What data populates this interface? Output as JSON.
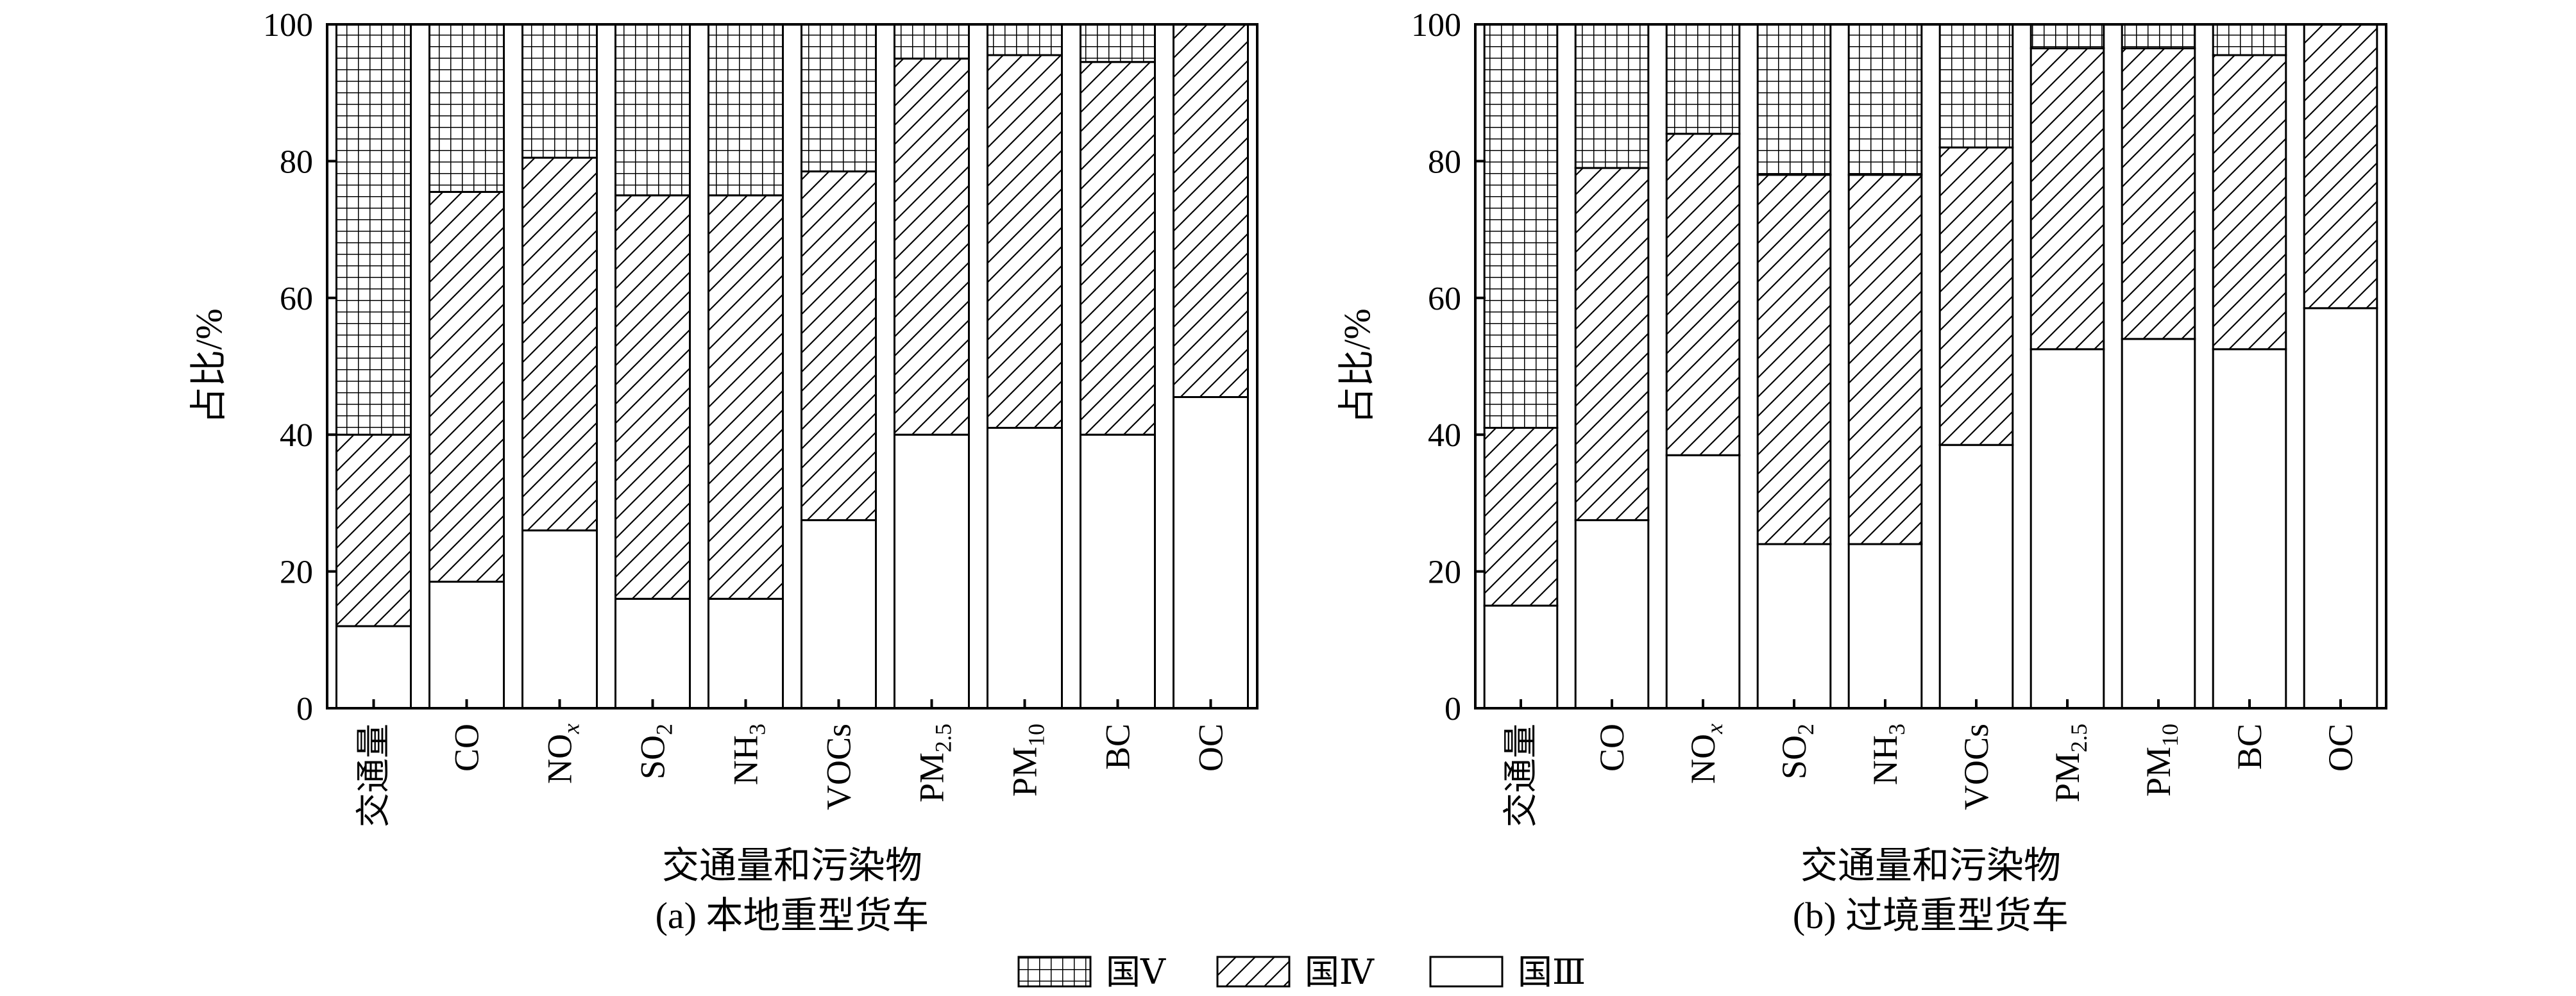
{
  "chart_data": [
    {
      "type": "bar",
      "stacked": true,
      "caption": "(a) 本地重型货车",
      "xlabel": "交通量和污染物",
      "ylabel": "占比/%",
      "ylim": [
        0,
        100
      ],
      "yticks": [
        "0",
        "20",
        "40",
        "60",
        "80",
        "100"
      ],
      "categories": [
        {
          "base": "交通量",
          "sub": "",
          "sub_type": ""
        },
        {
          "base": "CO",
          "sub": "",
          "sub_type": ""
        },
        {
          "base": "NO",
          "sub": "x",
          "sub_type": "italic"
        },
        {
          "base": "SO",
          "sub": "2",
          "sub_type": "normal"
        },
        {
          "base": "NH",
          "sub": "3",
          "sub_type": "normal"
        },
        {
          "base": "VOCs",
          "sub": "",
          "sub_type": ""
        },
        {
          "base": "PM",
          "sub": "2.5",
          "sub_type": "normal"
        },
        {
          "base": "PM",
          "sub": "10",
          "sub_type": "normal"
        },
        {
          "base": "BC",
          "sub": "",
          "sub_type": ""
        },
        {
          "base": "OC",
          "sub": "",
          "sub_type": ""
        }
      ],
      "series": [
        {
          "name": "国Ⅲ",
          "pattern": "none",
          "values": [
            12,
            18.5,
            26,
            16,
            16,
            27.5,
            40,
            41,
            40,
            45.5
          ]
        },
        {
          "name": "国Ⅳ",
          "pattern": "hatch",
          "values": [
            28,
            57,
            54.5,
            59,
            59,
            51,
            55,
            54.5,
            54.5,
            54.5
          ]
        },
        {
          "name": "国Ⅴ",
          "pattern": "grid",
          "values": [
            60,
            24.5,
            19.5,
            25,
            25,
            21.5,
            5,
            4.5,
            5.5,
            0
          ]
        }
      ]
    },
    {
      "type": "bar",
      "stacked": true,
      "caption": "(b) 过境重型货车",
      "xlabel": "交通量和污染物",
      "ylabel": "占比/%",
      "ylim": [
        0,
        100
      ],
      "yticks": [
        "0",
        "20",
        "40",
        "60",
        "80",
        "100"
      ],
      "categories": [
        {
          "base": "交通量",
          "sub": "",
          "sub_type": ""
        },
        {
          "base": "CO",
          "sub": "",
          "sub_type": ""
        },
        {
          "base": "NO",
          "sub": "x",
          "sub_type": "italic"
        },
        {
          "base": "SO",
          "sub": "2",
          "sub_type": "normal"
        },
        {
          "base": "NH",
          "sub": "3",
          "sub_type": "normal"
        },
        {
          "base": "VOCs",
          "sub": "",
          "sub_type": ""
        },
        {
          "base": "PM",
          "sub": "2.5",
          "sub_type": "normal"
        },
        {
          "base": "PM",
          "sub": "10",
          "sub_type": "normal"
        },
        {
          "base": "BC",
          "sub": "",
          "sub_type": ""
        },
        {
          "base": "OC",
          "sub": "",
          "sub_type": ""
        }
      ],
      "series": [
        {
          "name": "国Ⅲ",
          "pattern": "none",
          "values": [
            15,
            27.5,
            37,
            24,
            24,
            38.5,
            52.5,
            54,
            52.5,
            58.5
          ]
        },
        {
          "name": "国Ⅳ",
          "pattern": "hatch",
          "values": [
            26,
            51.5,
            47,
            54,
            54,
            43.5,
            44,
            42.5,
            43,
            41.5
          ]
        },
        {
          "name": "国Ⅴ",
          "pattern": "grid",
          "values": [
            59,
            21,
            16,
            22,
            22,
            18,
            3.5,
            3.5,
            4.5,
            0
          ]
        }
      ]
    }
  ],
  "legend": {
    "placement": "bottom-center",
    "items": [
      {
        "label": "国Ⅴ",
        "pattern": "grid"
      },
      {
        "label": "国Ⅳ",
        "pattern": "hatch"
      },
      {
        "label": "国Ⅲ",
        "pattern": "none"
      }
    ]
  },
  "colors": {
    "line": "#000000",
    "background": "#ffffff"
  }
}
